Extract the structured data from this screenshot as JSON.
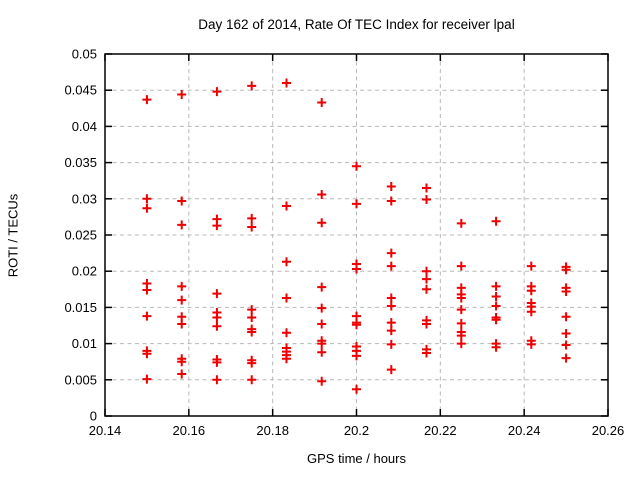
{
  "title": "Day 162 of 2014, Rate Of TEC Index for receiver lpal",
  "colors": {
    "marker": "#ee0000",
    "grid": "#b8b8b8",
    "axis": "#000000",
    "background": "#ffffff"
  },
  "chart_data": {
    "type": "scatter",
    "title": "Day 162 of 2014, Rate Of TEC Index for receiver lpal",
    "xlabel": "GPS time / hours",
    "ylabel": "ROTI / TECUs",
    "xlim": [
      20.14,
      20.26
    ],
    "ylim": [
      0,
      0.05
    ],
    "x_ticks": [
      20.14,
      20.16,
      20.18,
      20.2,
      20.22,
      20.24,
      20.26
    ],
    "x_tick_labels": [
      "20.14",
      "20.16",
      "20.18",
      "20.2",
      "20.22",
      "20.24",
      "20.26"
    ],
    "y_ticks": [
      0,
      0.005,
      0.01,
      0.015,
      0.02,
      0.025,
      0.03,
      0.035,
      0.04,
      0.045,
      0.05
    ],
    "y_tick_labels": [
      "0",
      "0.005",
      "0.01",
      "0.015",
      "0.02",
      "0.025",
      "0.03",
      "0.035",
      "0.04",
      "0.045",
      "0.05"
    ],
    "grid": true,
    "legend": "none",
    "marker_style": "plus",
    "points": [
      [
        20.15,
        0.0437
      ],
      [
        20.15,
        0.03
      ],
      [
        20.15,
        0.0287
      ],
      [
        20.15,
        0.0183
      ],
      [
        20.15,
        0.0174
      ],
      [
        20.15,
        0.0138
      ],
      [
        20.15,
        0.009
      ],
      [
        20.15,
        0.0086
      ],
      [
        20.15,
        0.0051
      ],
      [
        20.1583,
        0.0444
      ],
      [
        20.1583,
        0.0297
      ],
      [
        20.1583,
        0.0264
      ],
      [
        20.1583,
        0.0179
      ],
      [
        20.1583,
        0.016
      ],
      [
        20.1583,
        0.0137
      ],
      [
        20.1583,
        0.0127
      ],
      [
        20.1583,
        0.0079
      ],
      [
        20.1583,
        0.0075
      ],
      [
        20.1583,
        0.0058
      ],
      [
        20.1667,
        0.0448
      ],
      [
        20.1667,
        0.0272
      ],
      [
        20.1667,
        0.0263
      ],
      [
        20.1667,
        0.0169
      ],
      [
        20.1667,
        0.0143
      ],
      [
        20.1667,
        0.0136
      ],
      [
        20.1667,
        0.0124
      ],
      [
        20.1667,
        0.0078
      ],
      [
        20.1667,
        0.0074
      ],
      [
        20.1667,
        0.005
      ],
      [
        20.175,
        0.0456
      ],
      [
        20.175,
        0.0273
      ],
      [
        20.175,
        0.0261
      ],
      [
        20.175,
        0.0147
      ],
      [
        20.175,
        0.0136
      ],
      [
        20.175,
        0.012
      ],
      [
        20.175,
        0.0116
      ],
      [
        20.175,
        0.0077
      ],
      [
        20.175,
        0.0073
      ],
      [
        20.175,
        0.005
      ],
      [
        20.1833,
        0.046
      ],
      [
        20.1833,
        0.029
      ],
      [
        20.1833,
        0.0213
      ],
      [
        20.1833,
        0.0163
      ],
      [
        20.1833,
        0.0115
      ],
      [
        20.1833,
        0.0094
      ],
      [
        20.1833,
        0.0089
      ],
      [
        20.1833,
        0.0084
      ],
      [
        20.1833,
        0.0079
      ],
      [
        20.1917,
        0.0433
      ],
      [
        20.1917,
        0.0306
      ],
      [
        20.1917,
        0.0267
      ],
      [
        20.1917,
        0.0178
      ],
      [
        20.1917,
        0.0149
      ],
      [
        20.1917,
        0.0127
      ],
      [
        20.1917,
        0.0104
      ],
      [
        20.1917,
        0.01
      ],
      [
        20.1917,
        0.0088
      ],
      [
        20.1917,
        0.0048
      ],
      [
        20.2,
        0.0345
      ],
      [
        20.2,
        0.0293
      ],
      [
        20.2,
        0.021
      ],
      [
        20.2,
        0.0203
      ],
      [
        20.2,
        0.0138
      ],
      [
        20.2,
        0.0129
      ],
      [
        20.2,
        0.0126
      ],
      [
        20.2,
        0.0096
      ],
      [
        20.2,
        0.009
      ],
      [
        20.2,
        0.0083
      ],
      [
        20.2,
        0.0037
      ],
      [
        20.2083,
        0.0317
      ],
      [
        20.2083,
        0.0297
      ],
      [
        20.2083,
        0.0225
      ],
      [
        20.2083,
        0.0207
      ],
      [
        20.2083,
        0.0163
      ],
      [
        20.2083,
        0.0152
      ],
      [
        20.2083,
        0.0129
      ],
      [
        20.2083,
        0.0118
      ],
      [
        20.2083,
        0.0099
      ],
      [
        20.2083,
        0.0064
      ],
      [
        20.2167,
        0.0315
      ],
      [
        20.2167,
        0.0299
      ],
      [
        20.2167,
        0.02
      ],
      [
        20.2167,
        0.0189
      ],
      [
        20.2167,
        0.0175
      ],
      [
        20.2167,
        0.0132
      ],
      [
        20.2167,
        0.0127
      ],
      [
        20.2167,
        0.0092
      ],
      [
        20.2167,
        0.0087
      ],
      [
        20.225,
        0.0266
      ],
      [
        20.225,
        0.0207
      ],
      [
        20.225,
        0.0177
      ],
      [
        20.225,
        0.0168
      ],
      [
        20.225,
        0.0163
      ],
      [
        20.225,
        0.0147
      ],
      [
        20.225,
        0.0128
      ],
      [
        20.225,
        0.0116
      ],
      [
        20.225,
        0.0111
      ],
      [
        20.225,
        0.01
      ],
      [
        20.2333,
        0.0269
      ],
      [
        20.2333,
        0.0179
      ],
      [
        20.2333,
        0.0165
      ],
      [
        20.2333,
        0.0152
      ],
      [
        20.2333,
        0.0136
      ],
      [
        20.2333,
        0.0133
      ],
      [
        20.2333,
        0.01
      ],
      [
        20.2333,
        0.0095
      ],
      [
        20.2417,
        0.0207
      ],
      [
        20.2417,
        0.0179
      ],
      [
        20.2417,
        0.0173
      ],
      [
        20.2417,
        0.0156
      ],
      [
        20.2417,
        0.0151
      ],
      [
        20.2417,
        0.0144
      ],
      [
        20.2417,
        0.0104
      ],
      [
        20.2417,
        0.0099
      ],
      [
        20.25,
        0.0206
      ],
      [
        20.25,
        0.0202
      ],
      [
        20.25,
        0.0177
      ],
      [
        20.25,
        0.0172
      ],
      [
        20.25,
        0.0137
      ],
      [
        20.25,
        0.0114
      ],
      [
        20.25,
        0.0098
      ],
      [
        20.25,
        0.008
      ]
    ]
  }
}
